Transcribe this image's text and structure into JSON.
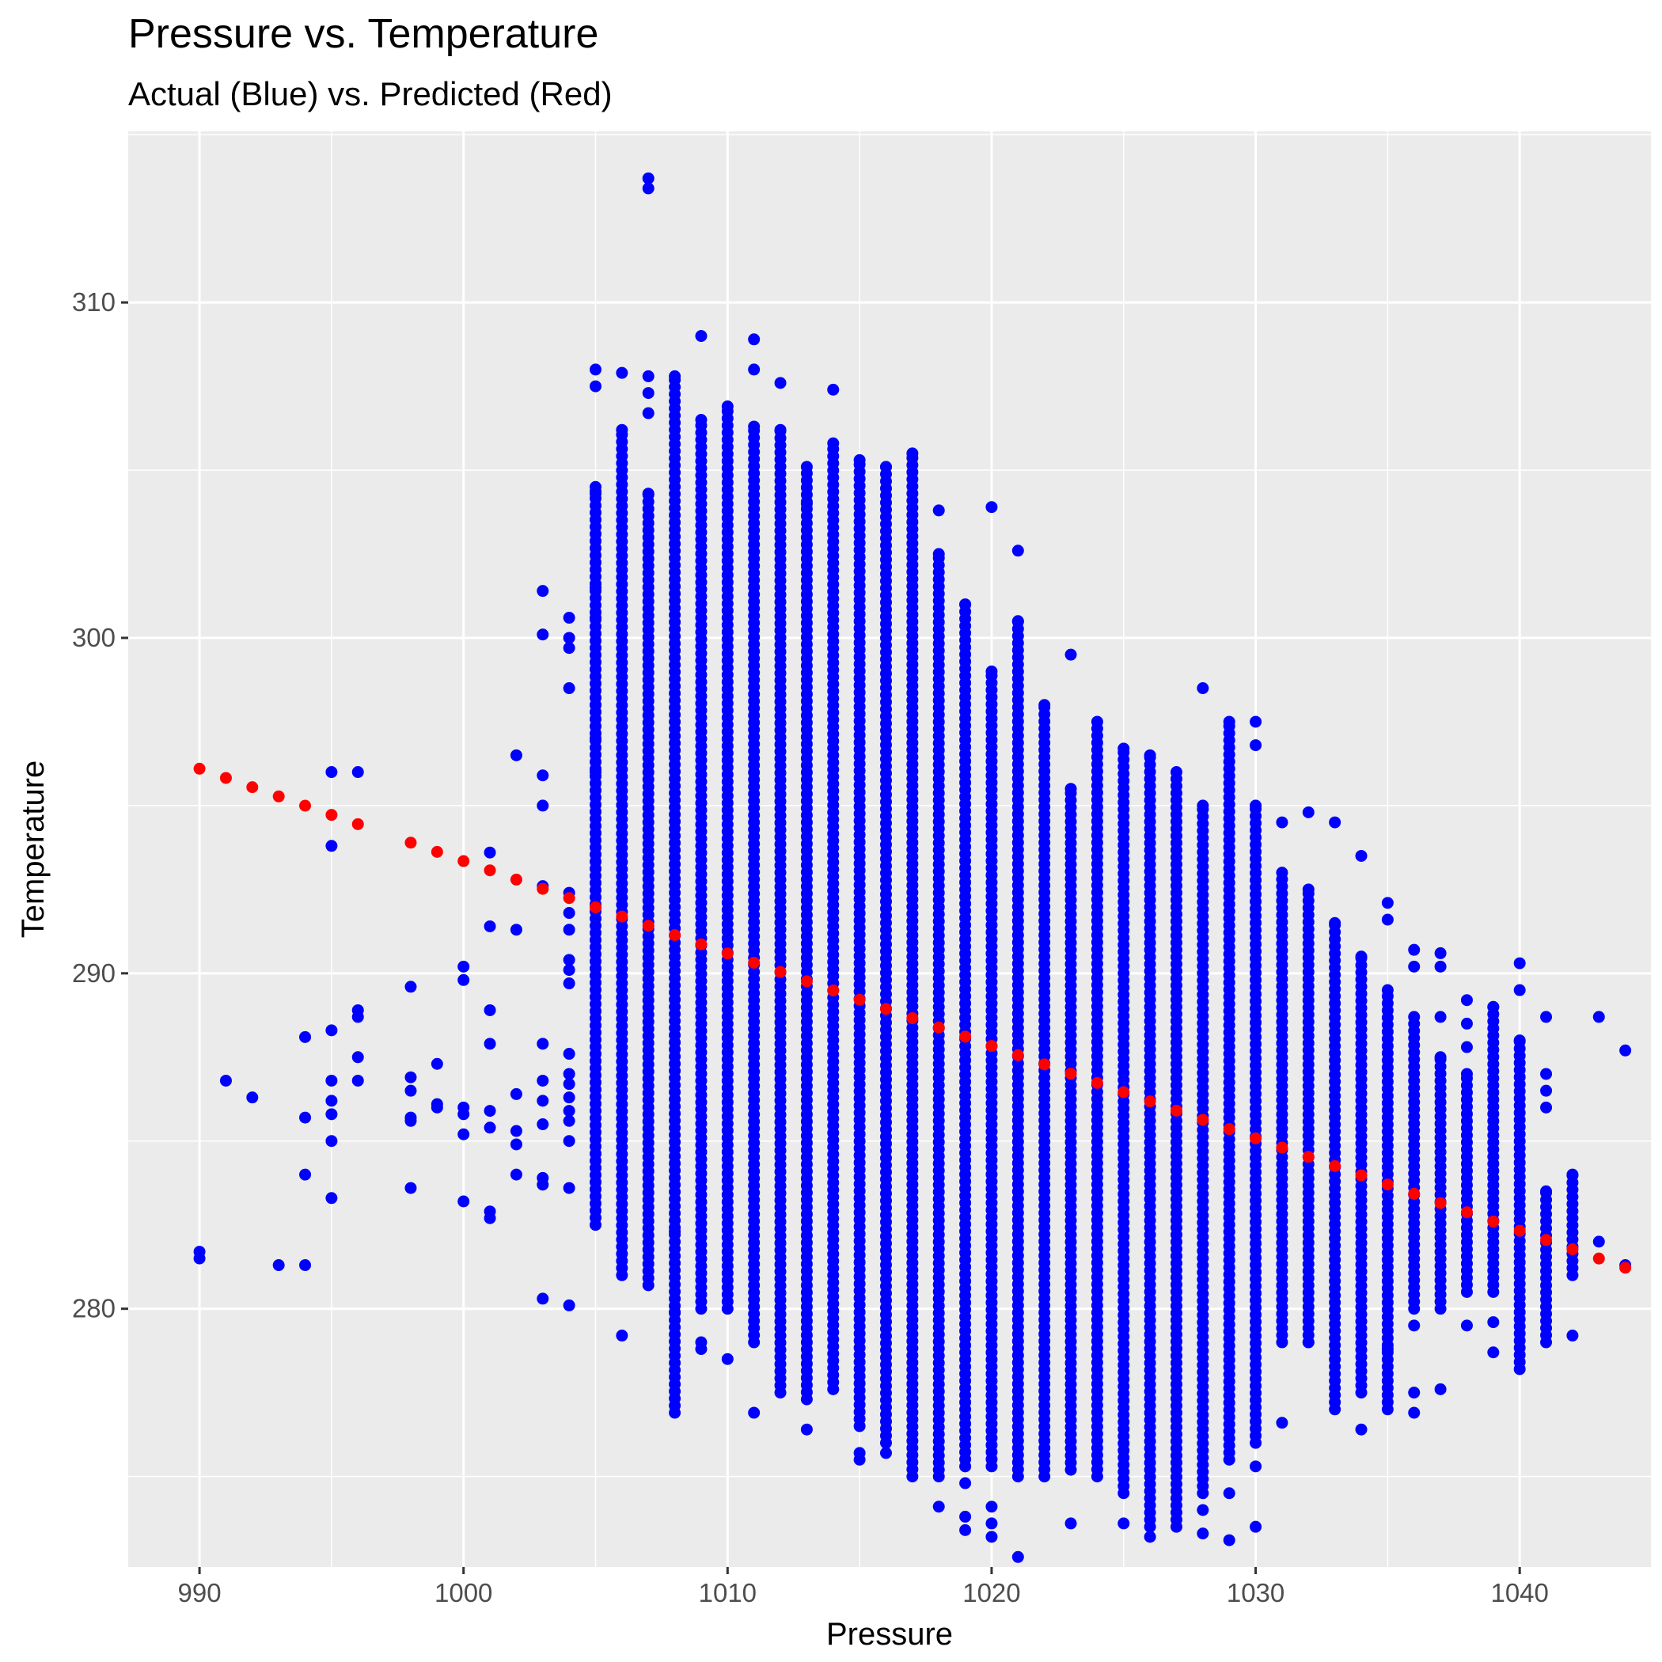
{
  "chart_data": {
    "type": "scatter",
    "title": "Pressure vs. Temperature",
    "subtitle": "Actual (Blue) vs. Predicted (Red)",
    "xlabel": "Pressure",
    "ylabel": "Temperature",
    "xlim": [
      987.3,
      1045.0
    ],
    "ylim": [
      272.3,
      315.1
    ],
    "x_ticks": [
      990,
      1000,
      1010,
      1020,
      1030,
      1040
    ],
    "y_ticks": [
      280,
      290,
      300,
      310
    ],
    "grid": true,
    "legend": "none",
    "colors": {
      "actual": "#0000ff",
      "predicted": "#ff0000",
      "panel": "#ebebeb",
      "grid": "#ffffff"
    },
    "series": [
      {
        "color": "#0000ff",
        "columns": [
          {
            "x": 990,
            "y": [
              281.5,
              281.7
            ]
          },
          {
            "x": 991,
            "y": [
              286.8
            ]
          },
          {
            "x": 992,
            "y": [
              286.3
            ]
          },
          {
            "x": 993,
            "y": [
              281.3
            ]
          },
          {
            "x": 994,
            "y": [
              281.3,
              284.0,
              285.7,
              288.1
            ]
          },
          {
            "x": 995,
            "y": [
              283.3,
              285.0,
              285.8,
              286.2,
              286.8,
              288.3,
              293.8,
              296.0
            ]
          },
          {
            "x": 996,
            "y": [
              286.8,
              287.5,
              288.7,
              288.9,
              296.0
            ]
          },
          {
            "x": 998,
            "y": [
              283.6,
              285.6,
              285.7,
              286.5,
              286.9,
              289.6
            ]
          },
          {
            "x": 999,
            "y": [
              286.0,
              286.1,
              287.3
            ]
          },
          {
            "x": 1000,
            "y": [
              283.2,
              285.2,
              285.8,
              286.0,
              289.8,
              290.2
            ]
          },
          {
            "x": 1001,
            "y": [
              282.7,
              282.9,
              285.4,
              285.9,
              287.9,
              288.9,
              291.4,
              293.6
            ]
          },
          {
            "x": 1002,
            "y": [
              284.0,
              284.9,
              285.3,
              286.4,
              291.3,
              296.5
            ]
          },
          {
            "x": 1003,
            "y": [
              280.3,
              283.7,
              283.9,
              285.5,
              286.2,
              286.8,
              287.9,
              292.6,
              295.0,
              295.9,
              300.1,
              301.4
            ]
          },
          {
            "x": 1004,
            "y": [
              280.1,
              283.6,
              285.0,
              285.6,
              285.9,
              286.3,
              286.7,
              287.0,
              287.6,
              289.7,
              290.1,
              290.4,
              291.3,
              291.8,
              292.4,
              298.5,
              299.7,
              300.0,
              300.6
            ]
          },
          {
            "x": 1005,
            "range": [
              282.5,
              304.5
            ],
            "extra": [
              296.0,
              297.0,
              298.0,
              300.6,
              301.5,
              304.3,
              307.5,
              308.0
            ]
          },
          {
            "x": 1006,
            "range": [
              281.0,
              306.2
            ],
            "extra": [
              279.2,
              307.9
            ]
          },
          {
            "x": 1007,
            "range": [
              280.7,
              304.3
            ],
            "extra": [
              313.4,
              313.7,
              306.7,
              307.3,
              307.8
            ]
          },
          {
            "x": 1008,
            "range": [
              276.9,
              307.8
            ],
            "extra": [
              282.3,
              279.9
            ]
          },
          {
            "x": 1009,
            "range": [
              280.0,
              306.5
            ],
            "extra": [
              279.0,
              278.8,
              309.0
            ]
          },
          {
            "x": 1010,
            "range": [
              280.0,
              306.9
            ],
            "extra": [
              278.5
            ]
          },
          {
            "x": 1011,
            "range": [
              279.0,
              306.3
            ],
            "extra": [
              276.9,
              308.0,
              308.9
            ]
          },
          {
            "x": 1012,
            "range": [
              277.5,
              306.2
            ],
            "extra": [
              307.6
            ]
          },
          {
            "x": 1013,
            "range": [
              277.3,
              305.1
            ],
            "extra": [
              276.4,
              304.0
            ]
          },
          {
            "x": 1014,
            "range": [
              277.6,
              305.8
            ],
            "extra": [
              307.4
            ]
          },
          {
            "x": 1015,
            "range": [
              276.5,
              305.3
            ],
            "extra": [
              275.5,
              275.7
            ]
          },
          {
            "x": 1016,
            "range": [
              276.0,
              305.1
            ],
            "extra": [
              275.7
            ]
          },
          {
            "x": 1017,
            "range": [
              275.0,
              305.5
            ]
          },
          {
            "x": 1018,
            "range": [
              275.2,
              302.5
            ],
            "extra": [
              274.1,
              275.0,
              303.8
            ]
          },
          {
            "x": 1019,
            "range": [
              275.3,
              301.0
            ],
            "extra": [
              274.8,
              273.8,
              273.4
            ]
          },
          {
            "x": 1020,
            "range": [
              275.3,
              299.0
            ],
            "extra": [
              274.1,
              273.6,
              273.2,
              303.9
            ]
          },
          {
            "x": 1021,
            "range": [
              275.0,
              300.5
            ],
            "extra": [
              272.6,
              302.6
            ]
          },
          {
            "x": 1022,
            "range": [
              275.0,
              298.0
            ]
          },
          {
            "x": 1023,
            "range": [
              275.2,
              295.5
            ],
            "extra": [
              273.6,
              299.5
            ]
          },
          {
            "x": 1024,
            "range": [
              275.0,
              297.5
            ]
          },
          {
            "x": 1025,
            "range": [
              274.5,
              296.7
            ],
            "extra": [
              273.6
            ]
          },
          {
            "x": 1026,
            "range": [
              273.5,
              296.5
            ],
            "extra": [
              273.2
            ]
          },
          {
            "x": 1027,
            "range": [
              273.5,
              296.0
            ]
          },
          {
            "x": 1028,
            "range": [
              274.5,
              295.0
            ],
            "extra": [
              274.0,
              273.3,
              298.5
            ]
          },
          {
            "x": 1029,
            "range": [
              275.5,
              297.5
            ],
            "extra": [
              274.5,
              273.1
            ]
          },
          {
            "x": 1030,
            "range": [
              276.0,
              295.0
            ],
            "extra": [
              273.5,
              275.3,
              296.8,
              297.5
            ]
          },
          {
            "x": 1031,
            "range": [
              279.0,
              293.0
            ],
            "extra": [
              276.6,
              294.5
            ]
          },
          {
            "x": 1032,
            "range": [
              279.0,
              292.5
            ],
            "extra": [
              279.0,
              294.8
            ]
          },
          {
            "x": 1033,
            "range": [
              277.0,
              291.5
            ],
            "extra": [
              294.5
            ]
          },
          {
            "x": 1034,
            "range": [
              277.5,
              290.5
            ],
            "extra": [
              276.4,
              293.5
            ]
          },
          {
            "x": 1035,
            "range": [
              277.0,
              289.5
            ],
            "extra": [
              278.8,
              291.6,
              292.1
            ]
          },
          {
            "x": 1036,
            "range": [
              280.0,
              288.7
            ],
            "extra": [
              276.9,
              277.5,
              279.5,
              290.2,
              290.7
            ]
          },
          {
            "x": 1037,
            "range": [
              280.0,
              287.5
            ],
            "extra": [
              277.6,
              288.7,
              290.2,
              290.6
            ]
          },
          {
            "x": 1038,
            "range": [
              280.5,
              287.0
            ],
            "extra": [
              279.5,
              287.8,
              288.5,
              289.2
            ]
          },
          {
            "x": 1039,
            "range": [
              280.5,
              289.0
            ],
            "extra": [
              278.7,
              279.6
            ]
          },
          {
            "x": 1040,
            "range": [
              278.2,
              288.0
            ],
            "extra": [
              289.5,
              290.3
            ]
          },
          {
            "x": 1041,
            "range": [
              279.0,
              283.5
            ],
            "extra": [
              286.0,
              286.5,
              287.0,
              288.7
            ]
          },
          {
            "x": 1042,
            "range": [
              281.0,
              284.0
            ],
            "extra": [
              279.2
            ]
          },
          {
            "x": 1043,
            "y": [
              282.0,
              288.7
            ]
          },
          {
            "x": 1044,
            "y": [
              281.3,
              287.7
            ]
          }
        ]
      },
      {
        "color": "#ff0000",
        "line": {
          "x_start": 990,
          "x_end": 1044,
          "step": 1,
          "y_at_990": 296.1,
          "slope": -0.2755
        },
        "x": [
          990,
          991,
          992,
          993,
          994,
          995,
          996,
          998,
          999,
          1000,
          1001,
          1002,
          1003,
          1004,
          1005,
          1006,
          1007,
          1008,
          1009,
          1010,
          1011,
          1012,
          1013,
          1014,
          1015,
          1016,
          1017,
          1018,
          1019,
          1020,
          1021,
          1022,
          1023,
          1024,
          1025,
          1026,
          1027,
          1028,
          1029,
          1030,
          1031,
          1032,
          1033,
          1034,
          1035,
          1036,
          1037,
          1038,
          1039,
          1040,
          1041,
          1042,
          1043,
          1044
        ]
      }
    ]
  }
}
